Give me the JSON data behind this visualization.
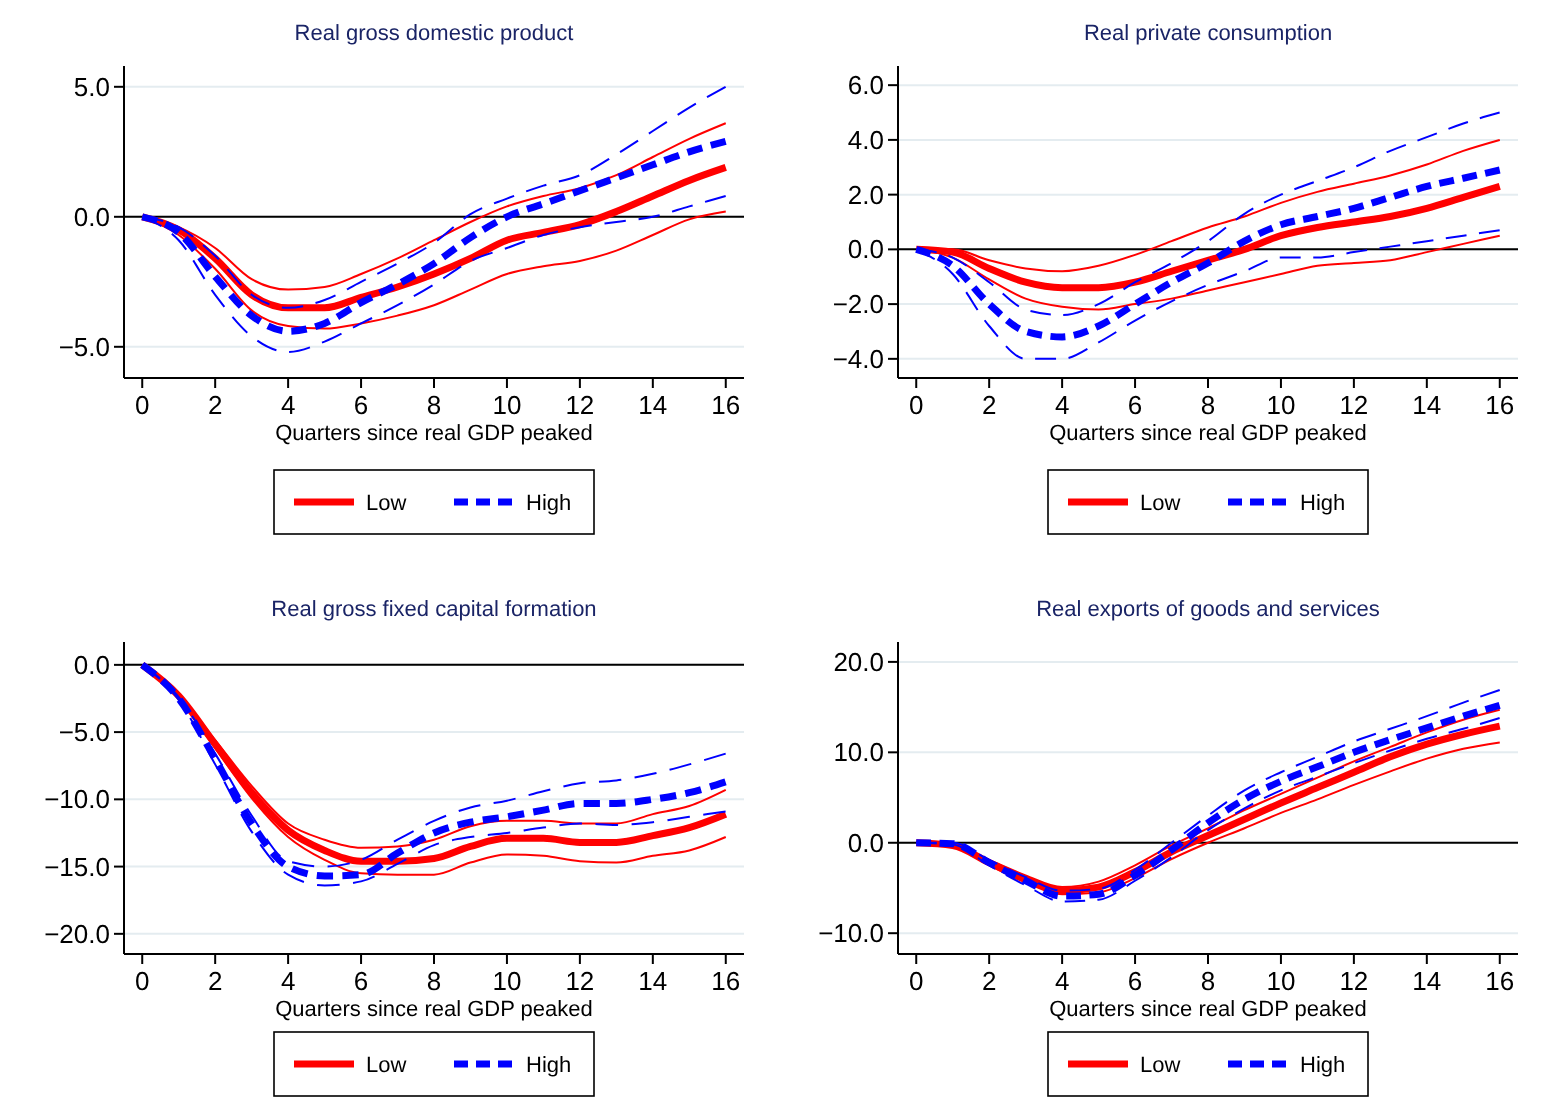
{
  "chart_data": [
    {
      "type": "line",
      "title": "Real gross domestic product",
      "xlabel": "Quarters since real GDP peaked",
      "x": [
        0,
        1,
        2,
        3,
        4,
        5,
        6,
        7,
        8,
        9,
        10,
        11,
        12,
        13,
        14,
        15,
        16
      ],
      "xlim": [
        -0.5,
        16.5
      ],
      "xticks": [
        0,
        2,
        4,
        6,
        8,
        10,
        12,
        14,
        16
      ],
      "ylim": [
        -6.2,
        5.8
      ],
      "yticks": [
        {
          "value": -5,
          "label": "−5.0"
        },
        {
          "value": 0,
          "label": "0.0"
        },
        {
          "value": 5,
          "label": "5.0"
        }
      ],
      "grid": "y",
      "legend": "bottom",
      "ref_lines": [
        {
          "axis": "y",
          "value": 0,
          "color": "#000000"
        }
      ],
      "series": [
        {
          "name": "Low",
          "color": "#ff0000",
          "line_style": "solid",
          "values": [
            0,
            -0.5,
            -1.6,
            -3.0,
            -3.5,
            -3.5,
            -3.1,
            -2.7,
            -2.2,
            -1.6,
            -0.9,
            -0.6,
            -0.3,
            0.2,
            0.8,
            1.4,
            1.9
          ]
        },
        {
          "color": "#ff0000",
          "line_style": "solid",
          "values": [
            0,
            -0.4,
            -1.2,
            -2.4,
            -2.8,
            -2.7,
            -2.2,
            -1.6,
            -0.9,
            -0.2,
            0.4,
            0.8,
            1.1,
            1.6,
            2.3,
            3.0,
            3.6
          ]
        },
        {
          "color": "#ff0000",
          "line_style": "solid",
          "values": [
            0,
            -0.7,
            -2.0,
            -3.6,
            -4.2,
            -4.3,
            -4.1,
            -3.8,
            -3.4,
            -2.8,
            -2.2,
            -1.9,
            -1.7,
            -1.3,
            -0.7,
            -0.1,
            0.2
          ]
        },
        {
          "name": "High",
          "color": "#0000ff",
          "line_style": "dashed",
          "values": [
            0,
            -0.6,
            -2.3,
            -3.8,
            -4.4,
            -4.1,
            -3.3,
            -2.6,
            -1.8,
            -0.8,
            0.0,
            0.5,
            1.0,
            1.5,
            2.0,
            2.5,
            2.9
          ]
        },
        {
          "color": "#0000ff",
          "line_style": "dashed",
          "values": [
            0,
            -0.4,
            -1.5,
            -3.0,
            -3.5,
            -3.2,
            -2.5,
            -1.8,
            -1.0,
            0.1,
            0.7,
            1.2,
            1.6,
            2.4,
            3.3,
            4.2,
            5.0
          ]
        },
        {
          "color": "#0000ff",
          "line_style": "dashed",
          "values": [
            0,
            -0.9,
            -3.0,
            -4.6,
            -5.2,
            -4.8,
            -4.1,
            -3.4,
            -2.6,
            -1.7,
            -1.2,
            -0.7,
            -0.4,
            -0.2,
            0.0,
            0.4,
            0.8
          ]
        }
      ]
    },
    {
      "type": "line",
      "title": "Real private consumption",
      "xlabel": "Quarters since real GDP peaked",
      "x": [
        0,
        1,
        2,
        3,
        4,
        5,
        6,
        7,
        8,
        9,
        10,
        11,
        12,
        13,
        14,
        15,
        16
      ],
      "xlim": [
        -0.5,
        16.5
      ],
      "xticks": [
        0,
        2,
        4,
        6,
        8,
        10,
        12,
        14,
        16
      ],
      "ylim": [
        -4.7,
        6.7
      ],
      "yticks": [
        {
          "value": -4,
          "label": "−4.0"
        },
        {
          "value": -2,
          "label": "−2.0"
        },
        {
          "value": 0,
          "label": "0.0"
        },
        {
          "value": 2,
          "label": "2.0"
        },
        {
          "value": 4,
          "label": "4.0"
        },
        {
          "value": 6,
          "label": "6.0"
        }
      ],
      "grid": "y",
      "legend": "bottom",
      "ref_lines": [
        {
          "axis": "y",
          "value": 0,
          "color": "#000000"
        }
      ],
      "series": [
        {
          "name": "Low",
          "color": "#ff0000",
          "line_style": "solid",
          "values": [
            0,
            -0.1,
            -0.7,
            -1.2,
            -1.4,
            -1.4,
            -1.2,
            -0.8,
            -0.4,
            0.0,
            0.5,
            0.8,
            1.0,
            1.2,
            1.5,
            1.9,
            2.3
          ]
        },
        {
          "color": "#ff0000",
          "line_style": "solid",
          "values": [
            0,
            0.0,
            -0.4,
            -0.7,
            -0.8,
            -0.6,
            -0.2,
            0.3,
            0.8,
            1.2,
            1.7,
            2.1,
            2.4,
            2.7,
            3.1,
            3.6,
            4.0
          ]
        },
        {
          "color": "#ff0000",
          "line_style": "solid",
          "values": [
            0,
            -0.3,
            -1.1,
            -1.8,
            -2.1,
            -2.2,
            -2.0,
            -1.8,
            -1.5,
            -1.2,
            -0.9,
            -0.6,
            -0.5,
            -0.4,
            -0.1,
            0.2,
            0.5
          ]
        },
        {
          "name": "High",
          "color": "#0000ff",
          "line_style": "dashed",
          "values": [
            0,
            -0.6,
            -2.0,
            -3.0,
            -3.2,
            -2.8,
            -2.0,
            -1.2,
            -0.5,
            0.3,
            0.9,
            1.2,
            1.5,
            1.9,
            2.3,
            2.6,
            2.9
          ]
        },
        {
          "color": "#0000ff",
          "line_style": "dashed",
          "values": [
            0,
            -0.3,
            -1.2,
            -2.2,
            -2.4,
            -2.0,
            -1.2,
            -0.5,
            0.3,
            1.3,
            2.0,
            2.5,
            3.0,
            3.6,
            4.1,
            4.6,
            5.0
          ]
        },
        {
          "color": "#0000ff",
          "line_style": "dashed",
          "values": [
            0,
            -0.9,
            -2.8,
            -4.0,
            -4.0,
            -3.4,
            -2.6,
            -1.9,
            -1.3,
            -0.8,
            -0.3,
            -0.3,
            -0.1,
            0.1,
            0.3,
            0.5,
            0.7
          ]
        }
      ]
    },
    {
      "type": "line",
      "title": "Real gross fixed capital formation",
      "xlabel": "Quarters since real GDP peaked",
      "x": [
        0,
        1,
        2,
        3,
        4,
        5,
        6,
        7,
        8,
        9,
        10,
        11,
        12,
        13,
        14,
        15,
        16
      ],
      "xlim": [
        -0.5,
        16.5
      ],
      "xticks": [
        0,
        2,
        4,
        6,
        8,
        10,
        12,
        14,
        16
      ],
      "ylim": [
        -21.5,
        1.7
      ],
      "yticks": [
        {
          "value": -20,
          "label": "−20.0"
        },
        {
          "value": -15,
          "label": "−15.0"
        },
        {
          "value": -10,
          "label": "−10.0"
        },
        {
          "value": -5,
          "label": "−5.0"
        },
        {
          "value": 0,
          "label": "0.0"
        }
      ],
      "grid": "y",
      "legend": "bottom",
      "ref_lines": [
        {
          "axis": "y",
          "value": 0,
          "color": "#000000"
        }
      ],
      "series": [
        {
          "name": "Low",
          "color": "#ff0000",
          "line_style": "solid",
          "values": [
            0,
            -2.3,
            -5.9,
            -9.5,
            -12.3,
            -13.8,
            -14.6,
            -14.6,
            -14.4,
            -13.5,
            -12.9,
            -12.9,
            -13.2,
            -13.2,
            -12.7,
            -12.1,
            -11.1
          ]
        },
        {
          "color": "#ff0000",
          "line_style": "solid",
          "values": [
            0,
            -2.2,
            -5.6,
            -9.0,
            -11.8,
            -13.0,
            -13.6,
            -13.5,
            -13.0,
            -12.0,
            -11.6,
            -11.6,
            -11.8,
            -11.8,
            -11.1,
            -10.5,
            -9.3
          ]
        },
        {
          "color": "#ff0000",
          "line_style": "solid",
          "values": [
            0,
            -2.4,
            -6.2,
            -9.9,
            -12.8,
            -14.5,
            -15.5,
            -15.6,
            -15.6,
            -14.7,
            -14.1,
            -14.2,
            -14.6,
            -14.7,
            -14.2,
            -13.8,
            -12.8
          ]
        },
        {
          "name": "High",
          "color": "#0000ff",
          "line_style": "dashed",
          "values": [
            0,
            -2.5,
            -7.0,
            -11.8,
            -15.0,
            -15.7,
            -15.6,
            -14.0,
            -12.5,
            -11.7,
            -11.3,
            -10.8,
            -10.3,
            -10.3,
            -10.0,
            -9.5,
            -8.7
          ]
        },
        {
          "color": "#0000ff",
          "line_style": "dashed",
          "values": [
            0,
            -2.4,
            -6.6,
            -11.2,
            -14.6,
            -15.0,
            -14.5,
            -13.0,
            -11.6,
            -10.6,
            -10.1,
            -9.4,
            -8.8,
            -8.6,
            -8.1,
            -7.4,
            -6.6
          ]
        },
        {
          "color": "#0000ff",
          "line_style": "dashed",
          "values": [
            0,
            -2.6,
            -7.4,
            -12.4,
            -15.6,
            -16.4,
            -16.1,
            -14.8,
            -13.4,
            -12.8,
            -12.5,
            -12.1,
            -11.8,
            -11.9,
            -11.7,
            -11.3,
            -10.9
          ]
        }
      ]
    },
    {
      "type": "line",
      "title": "Real exports of goods and services",
      "xlabel": "Quarters since real GDP peaked",
      "x": [
        0,
        1,
        2,
        3,
        4,
        5,
        6,
        7,
        8,
        9,
        10,
        11,
        12,
        13,
        14,
        15,
        16
      ],
      "xlim": [
        -0.5,
        16.5
      ],
      "xticks": [
        0,
        2,
        4,
        6,
        8,
        10,
        12,
        14,
        16
      ],
      "ylim": [
        -12.3,
        22.2
      ],
      "yticks": [
        {
          "value": -10,
          "label": "−10.0"
        },
        {
          "value": 0,
          "label": "0.0"
        },
        {
          "value": 10,
          "label": "10.0"
        },
        {
          "value": 20,
          "label": "20.0"
        }
      ],
      "grid": "y",
      "legend": "bottom",
      "ref_lines": [
        {
          "axis": "y",
          "value": 0,
          "color": "#000000"
        }
      ],
      "series": [
        {
          "name": "Low",
          "color": "#ff0000",
          "line_style": "solid",
          "values": [
            0,
            -0.3,
            -2.2,
            -4.0,
            -5.3,
            -4.9,
            -3.2,
            -1.0,
            0.8,
            2.6,
            4.4,
            6.1,
            7.8,
            9.5,
            10.9,
            12.0,
            12.9
          ]
        },
        {
          "color": "#ff0000",
          "line_style": "solid",
          "values": [
            0,
            -0.2,
            -1.9,
            -3.6,
            -4.9,
            -4.3,
            -2.5,
            -0.3,
            1.6,
            3.6,
            5.4,
            7.2,
            9.0,
            10.6,
            12.2,
            13.6,
            14.7
          ]
        },
        {
          "color": "#ff0000",
          "line_style": "solid",
          "values": [
            0,
            -0.4,
            -2.5,
            -4.4,
            -5.7,
            -5.5,
            -3.9,
            -1.8,
            0.0,
            1.6,
            3.3,
            4.8,
            6.4,
            7.9,
            9.3,
            10.4,
            11.1
          ]
        },
        {
          "name": "High",
          "color": "#0000ff",
          "line_style": "dashed",
          "values": [
            0,
            -0.1,
            -2.2,
            -4.2,
            -5.9,
            -5.7,
            -3.6,
            -0.8,
            2.2,
            4.8,
            6.8,
            8.4,
            10.0,
            11.4,
            12.7,
            14.0,
            15.2
          ]
        },
        {
          "color": "#0000ff",
          "line_style": "dashed",
          "values": [
            0,
            0.0,
            -1.9,
            -3.8,
            -5.3,
            -5.1,
            -3.0,
            0.0,
            3.0,
            5.8,
            7.8,
            9.5,
            11.2,
            12.6,
            14.0,
            15.5,
            16.9
          ]
        },
        {
          "color": "#0000ff",
          "line_style": "dashed",
          "values": [
            0,
            -0.2,
            -2.5,
            -4.7,
            -6.5,
            -6.3,
            -4.2,
            -1.6,
            1.4,
            3.8,
            5.8,
            7.3,
            8.8,
            10.2,
            11.5,
            12.6,
            13.8
          ]
        }
      ]
    }
  ]
}
